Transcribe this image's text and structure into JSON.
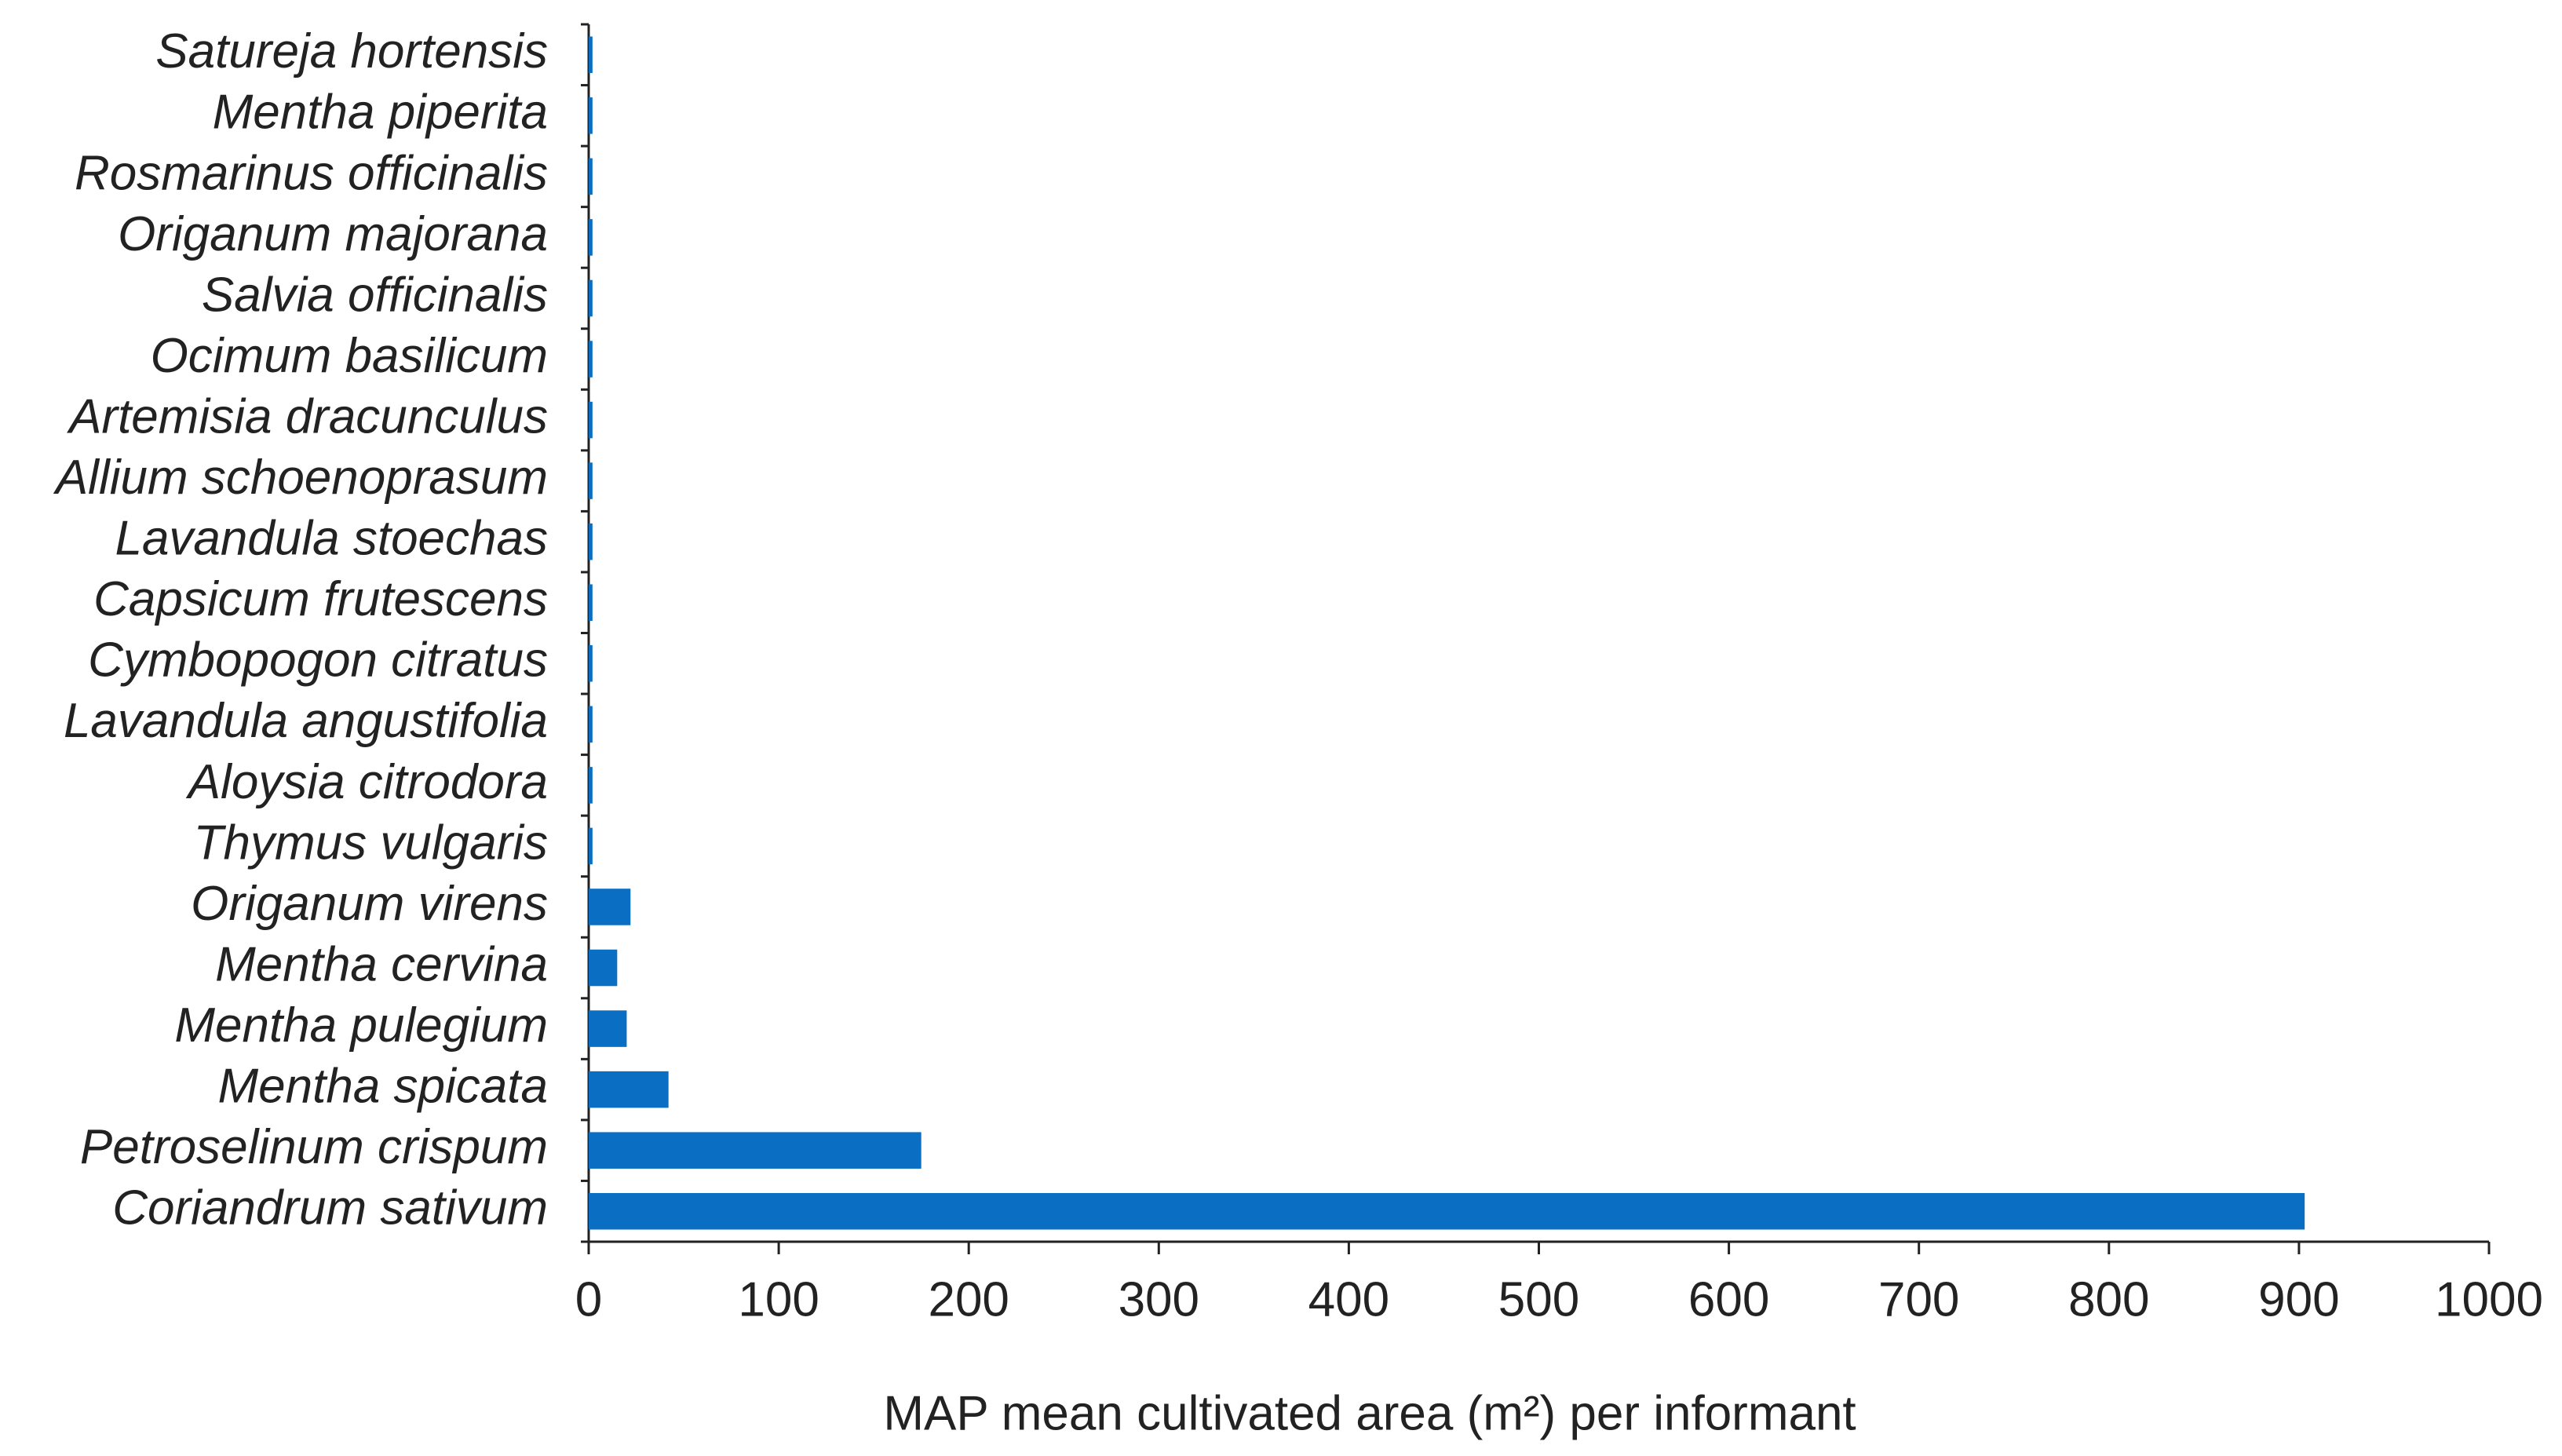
{
  "chart_data": {
    "type": "bar",
    "orientation": "horizontal",
    "x_label": "MAP mean cultivated area (m²) per informant",
    "categories": [
      "Satureja hortensis",
      "Mentha piperita",
      "Rosmarinus officinalis",
      "Origanum majorana",
      "Salvia officinalis",
      "Ocimum basilicum",
      "Artemisia dracunculus",
      "Allium schoenoprasum",
      "Lavandula stoechas",
      "Capsicum frutescens",
      "Cymbopogon citratus",
      "Lavandula angustifolia",
      "Aloysia citrodora",
      "Thymus vulgaris",
      "Origanum virens",
      "Mentha cervina",
      "Mentha pulegium",
      "Mentha spicata",
      "Petroselinum crispum",
      "Coriandrum sativum"
    ],
    "values": [
      2,
      2,
      2,
      2,
      2,
      2,
      2,
      2,
      2,
      2,
      2,
      2,
      2,
      2,
      22,
      15,
      20,
      42,
      175,
      903
    ],
    "color": "#0a6fc2",
    "xlim": [
      0,
      1000
    ],
    "xticks": [
      0,
      100,
      200,
      300,
      400,
      500,
      600,
      700,
      800,
      900,
      1000
    ]
  }
}
